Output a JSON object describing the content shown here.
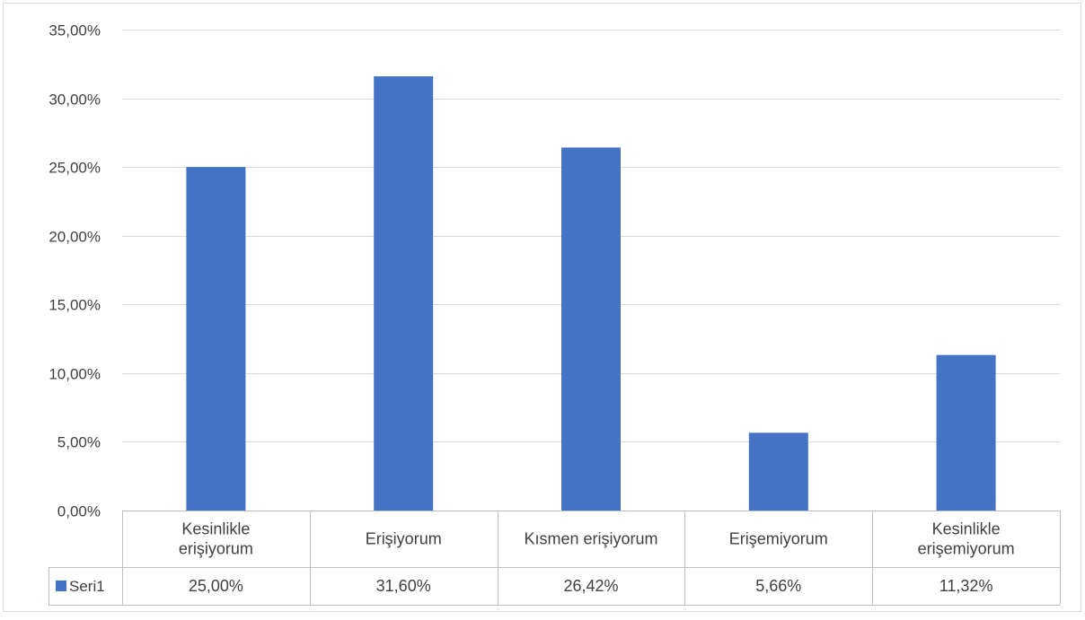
{
  "chart_data": {
    "type": "bar",
    "title": "",
    "xlabel": "",
    "ylabel": "",
    "categories": [
      [
        "Kesinlikle",
        "erişiyorum"
      ],
      [
        "Erişiyorum"
      ],
      [
        "Kısmen erişiyorum"
      ],
      [
        "Erişemiyorum"
      ],
      [
        "Kesinlikle",
        "erişemiyorum"
      ]
    ],
    "series": [
      {
        "name": "Seri1",
        "values": [
          25.0,
          31.6,
          26.42,
          5.66,
          11.32
        ],
        "labels": [
          "25,00%",
          "31,60%",
          "26,42%",
          "5,66%",
          "11,32%"
        ],
        "color": "#4472C4"
      }
    ],
    "ylim": [
      0,
      35
    ],
    "yticks": [
      0,
      5,
      10,
      15,
      20,
      25,
      30,
      35
    ],
    "ytick_labels": [
      "0,00%",
      "5,00%",
      "10,00%",
      "15,00%",
      "20,00%",
      "25,00%",
      "30,00%",
      "35,00%"
    ],
    "grid": true,
    "legend": "data-table-left",
    "colors": {
      "gridline": "#D9D9D9",
      "table_border": "#BFBFBF",
      "text": "#404040",
      "frame": "#D9D9D9"
    }
  }
}
